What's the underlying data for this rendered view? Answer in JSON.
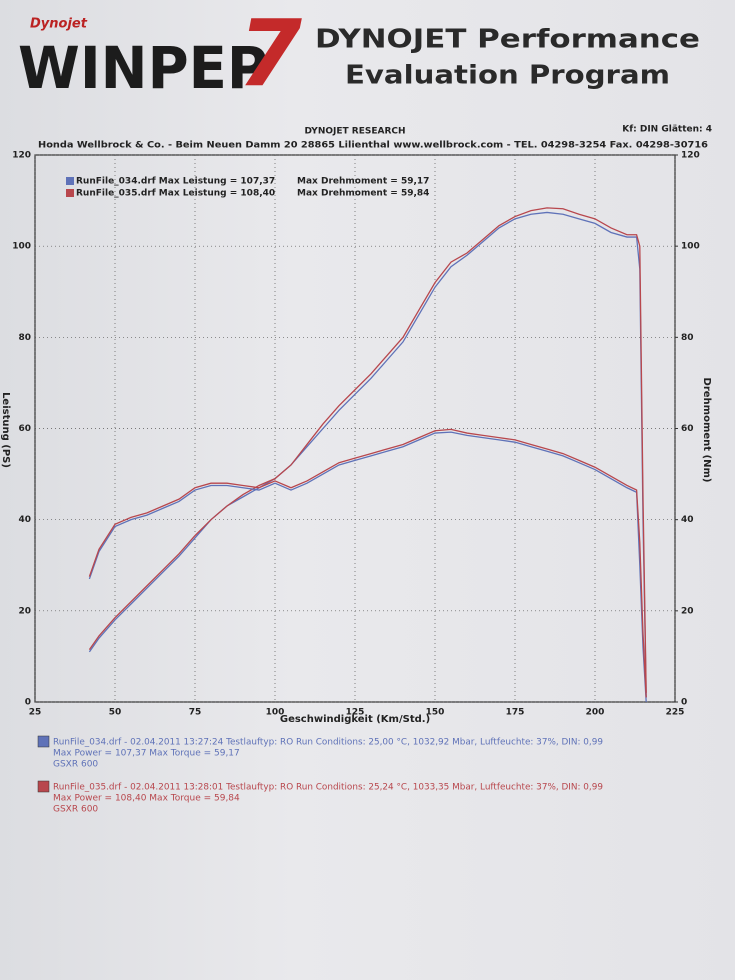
{
  "header": {
    "logo_small": "Dynojet",
    "logo": "WINPEP",
    "logo_number": "7",
    "title_line1": "DYNOJET Performance",
    "title_line2": "Evaluation Program"
  },
  "chart_data": {
    "type": "line",
    "title": "DYNOJET RESEARCH",
    "settings_label": "Kf: DIN  Glätten: 4",
    "subtitle": "Honda Wellbrock & Co. - Beim Neuen Damm 20 28865 Lilienthal www.wellbrock.com - TEL. 04298-3254 Fax. 04298-30716",
    "x_label": "Geschwindigkeit (Km/Std.)",
    "y_label": "Leistung (PS)",
    "y2_label": "Drehmoment (Nm)",
    "x": [
      42,
      45,
      50,
      55,
      60,
      65,
      70,
      75,
      80,
      85,
      90,
      95,
      100,
      105,
      110,
      115,
      120,
      125,
      130,
      135,
      140,
      145,
      150,
      155,
      160,
      165,
      170,
      175,
      180,
      185,
      190,
      195,
      200,
      205,
      210,
      213,
      214,
      215,
      216
    ],
    "series": [
      {
        "name": "RunFile_034.drf Max Leistung = 107,37",
        "color": "#5f72b8",
        "values": [
          11,
          14,
          18,
          21.5,
          25,
          28.5,
          32,
          36,
          40,
          43,
          45,
          47,
          49,
          52,
          56,
          60,
          64,
          67.5,
          71,
          75,
          79,
          85,
          91,
          95.5,
          98,
          101,
          104,
          106,
          107,
          107.4,
          107,
          106,
          105,
          103,
          102,
          102,
          95,
          40,
          1
        ]
      },
      {
        "name": "RunFile_035.drf Max Leistung = 108,40",
        "color": "#b8474d",
        "values": [
          11.5,
          14.5,
          18.5,
          22,
          25.5,
          29,
          32.5,
          36.5,
          40,
          43,
          45.5,
          47.5,
          49,
          52,
          56.5,
          61,
          65,
          68.5,
          72,
          76,
          80,
          86,
          92,
          96.5,
          98.5,
          101.5,
          104.5,
          106.5,
          107.8,
          108.4,
          108.2,
          107,
          106,
          104,
          102.5,
          102.5,
          100,
          45,
          2
        ]
      },
      {
        "name": "Max Drehmoment = 59,17",
        "color": "#5f72b8",
        "axis": "y2",
        "values": [
          27,
          33,
          38.5,
          40,
          41,
          42.5,
          44,
          46.5,
          47.5,
          47.5,
          47,
          46.5,
          48,
          46.5,
          48,
          50,
          52,
          53,
          54,
          55,
          56,
          57.5,
          59,
          59.2,
          58.5,
          58,
          57.5,
          57,
          56,
          55,
          54,
          52.5,
          51,
          49,
          47,
          46,
          30,
          12,
          0
        ]
      },
      {
        "name": "Max Drehmoment = 59,84",
        "color": "#b8474d",
        "axis": "y2",
        "values": [
          27.5,
          33.5,
          39,
          40.5,
          41.5,
          43,
          44.5,
          47,
          48,
          48,
          47.5,
          47,
          48.5,
          47,
          48.5,
          50.5,
          52.5,
          53.5,
          54.5,
          55.5,
          56.5,
          58,
          59.5,
          59.8,
          59,
          58.5,
          58,
          57.5,
          56.5,
          55.5,
          54.5,
          53,
          51.5,
          49.5,
          47.5,
          46.5,
          35,
          15,
          1
        ]
      }
    ],
    "xlim": [
      25,
      225
    ],
    "xticks": [
      25,
      50,
      75,
      100,
      125,
      150,
      175,
      200,
      225
    ],
    "ylim": [
      0,
      120
    ],
    "yticks": [
      0,
      20,
      40,
      60,
      80,
      100,
      120
    ],
    "y2lim": [
      0,
      120
    ],
    "y2ticks": [
      0,
      20,
      40,
      60,
      80,
      100,
      120
    ],
    "grid": true
  },
  "runs": [
    {
      "lines": [
        "RunFile_034.drf - 02.04.2011 13:27:24  Testlauftyp: RO  Run Conditions: 25,00 °C, 1032,92 Mbar,  Luftfeuchte: 37%, DIN: 0,99",
        "Max Power = 107,37  Max Torque = 59,17",
        "GSXR 600"
      ]
    },
    {
      "lines": [
        "RunFile_035.drf - 02.04.2011 13:28:01  Testlauftyp: RO  Run Conditions: 25,24 °C, 1033,35 Mbar,  Luftfeuchte: 37%, DIN: 0,99",
        "Max Power = 108,40  Max Torque = 59,84",
        "GSXR 600"
      ]
    }
  ]
}
